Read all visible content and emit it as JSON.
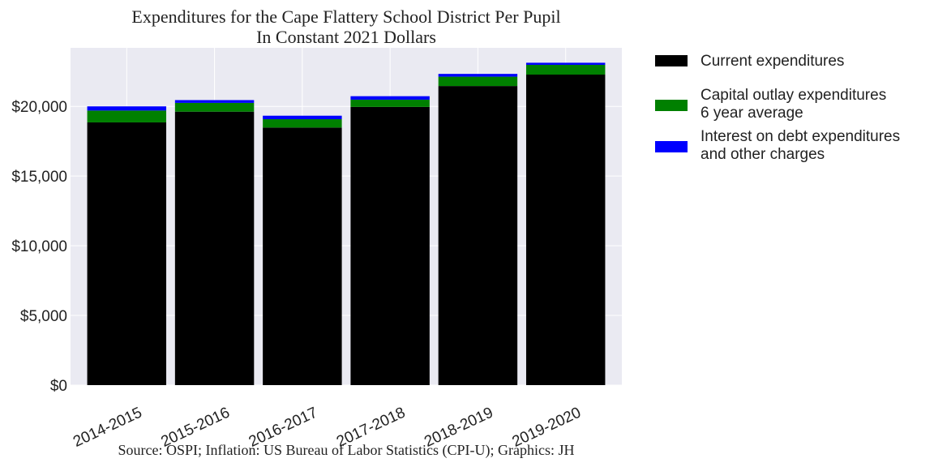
{
  "chart_data": {
    "type": "bar",
    "stacked": true,
    "title": [
      "Expenditures for the Cape Flattery School District Per Pupil",
      "In Constant 2021 Dollars"
    ],
    "xlabel": "",
    "ylabel": "",
    "categories": [
      "2014-2015",
      "2015-2016",
      "2016-2017",
      "2017-2018",
      "2018-2019",
      "2019-2020"
    ],
    "series": [
      {
        "name": "Current expenditures",
        "color": "#000000",
        "values": [
          18850,
          19620,
          18480,
          19960,
          21460,
          22280
        ]
      },
      {
        "name": "Capital outlay expenditures\n6 year average",
        "color": "#008000",
        "values": [
          850,
          630,
          600,
          520,
          670,
          700
        ]
      },
      {
        "name": "Interest on debt expenditures\nand other charges",
        "color": "#0000ff",
        "values": [
          300,
          200,
          250,
          250,
          200,
          150
        ]
      }
    ],
    "ylim": [
      0,
      24200
    ],
    "yticks": [
      0,
      5000,
      10000,
      15000,
      20000
    ],
    "ytick_labels": [
      "$0",
      "$5,000",
      "$10,000",
      "$15,000",
      "$20,000"
    ],
    "grid": true,
    "legend_position": "outside-right",
    "source": "Source: OSPI; Inflation: US Bureau of Labor Statistics (CPI-U); Graphics: JH",
    "background_color": "#eaeaf2"
  }
}
